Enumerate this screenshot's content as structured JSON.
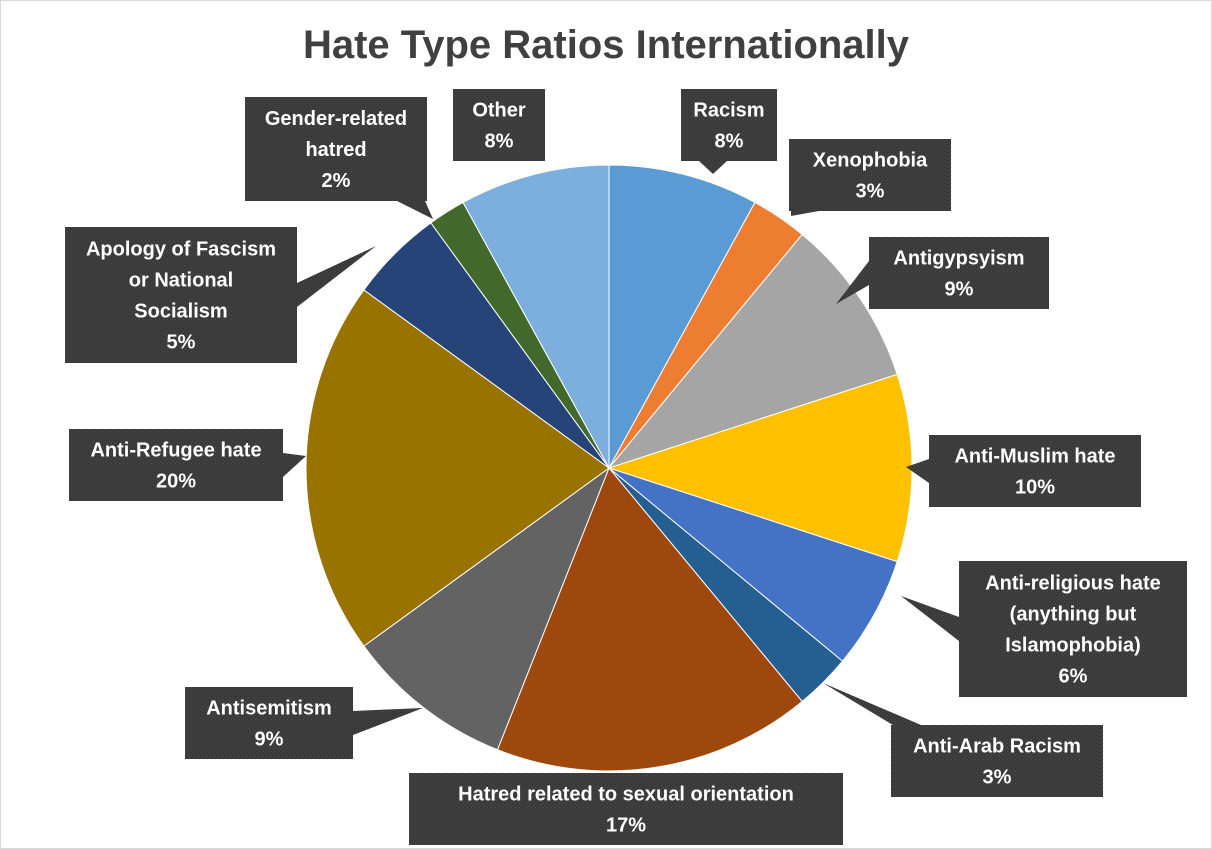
{
  "chart_data": {
    "type": "pie",
    "title": "Hate Type Ratios Internationally",
    "slices": [
      {
        "label": "Racism",
        "value": 8,
        "value_label": "8%",
        "color": "#5b9bd5"
      },
      {
        "label": "Xenophobia",
        "value": 3,
        "value_label": "3%",
        "color": "#ed7d31"
      },
      {
        "label": "Antigypsyism",
        "value": 9,
        "value_label": "9%",
        "color": "#a5a5a5"
      },
      {
        "label": "Anti-Muslim hate",
        "value": 10,
        "value_label": "10%",
        "color": "#ffc000"
      },
      {
        "label": "Anti-religious hate (anything but Islamophobia)",
        "value": 6,
        "value_label": "6%",
        "color": "#4472c4"
      },
      {
        "label": "Anti-Arab Racism",
        "value": 3,
        "value_label": "3%",
        "color": "#255e91"
      },
      {
        "label": "Hatred related to sexual orientation",
        "value": 17,
        "value_label": "17%",
        "color": "#9e480e"
      },
      {
        "label": "Antisemitism",
        "value": 9,
        "value_label": "9%",
        "color": "#636363"
      },
      {
        "label": "Anti-Refugee hate",
        "value": 20,
        "value_label": "20%",
        "color": "#997300"
      },
      {
        "label": "Apology of Fascism or National Socialism",
        "value": 5,
        "value_label": "5%",
        "color": "#264478"
      },
      {
        "label": "Gender-related hatred",
        "value": 2,
        "value_label": "2%",
        "color": "#43682b"
      },
      {
        "label": "Other",
        "value": 8,
        "value_label": "8%",
        "color": "#7cafdd"
      }
    ],
    "label_lines": [
      [
        "Racism",
        "8%"
      ],
      [
        "Xenophobia",
        "3%"
      ],
      [
        "Antigypsyism",
        "9%"
      ],
      [
        "Anti-Muslim hate",
        "10%"
      ],
      [
        "Anti-religious hate",
        "(anything but",
        "Islamophobia)",
        "6%"
      ],
      [
        "Anti-Arab Racism",
        "3%"
      ],
      [
        "Hatred related to sexual orientation",
        "17%"
      ],
      [
        "Antisemitism",
        "9%"
      ],
      [
        "Anti-Refugee hate",
        "20%"
      ],
      [
        "Apology of Fascism",
        "or National",
        "Socialism",
        "5%"
      ],
      [
        "Gender-related",
        "hatred",
        "2%"
      ],
      [
        "Other",
        "8%"
      ]
    ],
    "legend": "none",
    "data_labels": "callouts"
  }
}
